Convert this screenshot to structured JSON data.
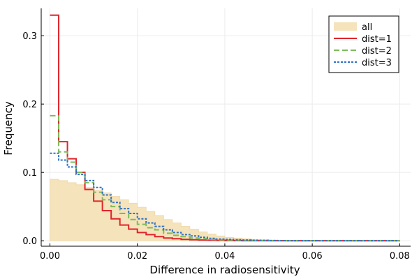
{
  "chart_data": {
    "type": "line",
    "subtype": "step-histogram",
    "title": "",
    "xlabel": "Difference in radiosensitivity",
    "ylabel": "Frequency",
    "xlim": [
      -0.002,
      0.0825
    ],
    "ylim": [
      -0.008,
      0.34
    ],
    "xticks": [
      0.0,
      0.02,
      0.04,
      0.06,
      0.08
    ],
    "xtick_labels": [
      "0.00",
      "0.02",
      "0.04",
      "0.06",
      "0.08"
    ],
    "yticks": [
      0.0,
      0.1,
      0.2,
      0.3
    ],
    "ytick_labels": [
      "0.0",
      "0.1",
      "0.2",
      "0.3"
    ],
    "grid": true,
    "legend_position": "top-right",
    "bin_edges": [
      0.0,
      0.002,
      0.004,
      0.006,
      0.008,
      0.01,
      0.012,
      0.014,
      0.016,
      0.018,
      0.02,
      0.022,
      0.024,
      0.026,
      0.028,
      0.03,
      0.032,
      0.034,
      0.036,
      0.038,
      0.04,
      0.042,
      0.044,
      0.046,
      0.048,
      0.05,
      0.052,
      0.054,
      0.056,
      0.058,
      0.06,
      0.062,
      0.064,
      0.066,
      0.068,
      0.07,
      0.072,
      0.074,
      0.076,
      0.078,
      0.08
    ],
    "series": [
      {
        "name": "all",
        "style": "filled",
        "color": "#f5e3bb",
        "values": [
          0.09,
          0.088,
          0.085,
          0.082,
          0.078,
          0.074,
          0.07,
          0.065,
          0.06,
          0.055,
          0.049,
          0.043,
          0.037,
          0.031,
          0.026,
          0.021,
          0.017,
          0.013,
          0.01,
          0.007,
          0.005,
          0.004,
          0.003,
          0.002,
          0.0015,
          0.001,
          0.0008,
          0.0006,
          0.0004,
          0.0003,
          0.0002,
          0.0001,
          0.0001,
          0.0,
          0.0,
          0.0,
          0.0,
          0.0,
          0.0,
          0.0
        ]
      },
      {
        "name": "dist=1",
        "style": "solid",
        "color": "#e0242b",
        "values": [
          0.33,
          0.145,
          0.12,
          0.1,
          0.075,
          0.058,
          0.044,
          0.032,
          0.023,
          0.017,
          0.012,
          0.009,
          0.006,
          0.004,
          0.003,
          0.002,
          0.0015,
          0.001,
          0.0008,
          0.0005,
          0.0003,
          0.0002,
          0.0001,
          0.0,
          0.0,
          0.0,
          0.0,
          0.0,
          0.0,
          0.0,
          0.0,
          0.0,
          0.0,
          0.0,
          0.0,
          0.0,
          0.0,
          0.0,
          0.0,
          0.0
        ]
      },
      {
        "name": "dist=2",
        "style": "dashed",
        "color": "#7dbb5a",
        "values": [
          0.183,
          0.13,
          0.115,
          0.1,
          0.085,
          0.071,
          0.06,
          0.05,
          0.04,
          0.031,
          0.024,
          0.019,
          0.016,
          0.011,
          0.008,
          0.006,
          0.004,
          0.003,
          0.002,
          0.0015,
          0.001,
          0.0008,
          0.0005,
          0.0003,
          0.0002,
          0.0001,
          0.0,
          0.0,
          0.0,
          0.0,
          0.0,
          0.0,
          0.0,
          0.0,
          0.0,
          0.0,
          0.0,
          0.0,
          0.0,
          0.0
        ]
      },
      {
        "name": "dist=3",
        "style": "dotted",
        "color": "#2f71c7",
        "values": [
          0.128,
          0.118,
          0.108,
          0.097,
          0.088,
          0.078,
          0.067,
          0.056,
          0.047,
          0.04,
          0.032,
          0.026,
          0.021,
          0.016,
          0.012,
          0.009,
          0.007,
          0.005,
          0.0035,
          0.0025,
          0.002,
          0.0015,
          0.001,
          0.0007,
          0.0005,
          0.0003,
          0.0002,
          0.0001,
          0.0,
          0.0,
          0.0,
          0.0,
          0.0,
          0.0,
          0.0,
          0.0,
          0.0,
          0.0,
          0.0,
          0.0
        ]
      }
    ]
  }
}
